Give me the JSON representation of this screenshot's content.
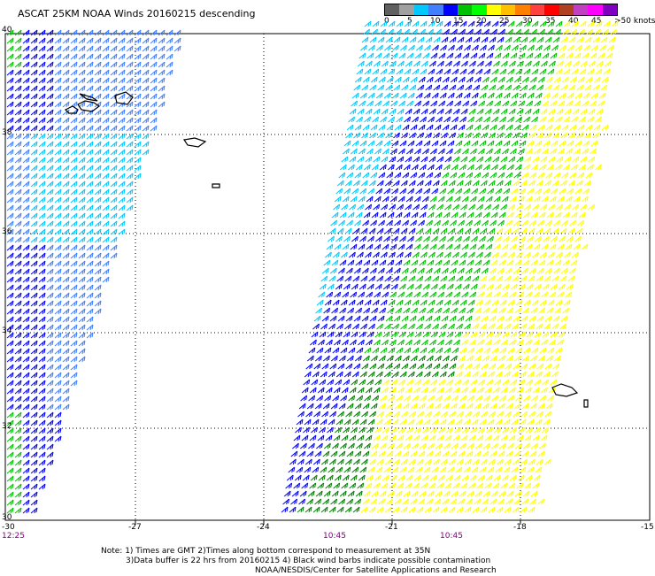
{
  "title": "ASCAT 25KM NOAA Winds 20160215 descending",
  "legend": {
    "colors": [
      "#606060",
      "#a0a0a0",
      "#00c8ff",
      "#4080ff",
      "#0000ff",
      "#00c000",
      "#00ff00",
      "#ffff00",
      "#ffc000",
      "#ff8000",
      "#ff4040",
      "#ff0000",
      "#b04020",
      "#c040c0",
      "#ff00ff",
      "#8000c0"
    ],
    "labels": [
      "0",
      "5",
      "10",
      "15",
      "20",
      "25",
      "30",
      "35",
      "40",
      "45",
      ">50 knots"
    ]
  },
  "map": {
    "lon_labels": [
      "-30",
      "-27",
      "-24",
      "-21",
      "-18",
      "-15"
    ],
    "lat_labels": [
      "40",
      "38",
      "36",
      "34",
      "32",
      "30"
    ],
    "times": [
      "12:25",
      "10:45",
      "10:45"
    ],
    "time_color": "#800080"
  },
  "notes": [
    "Note: 1) Times are GMT 2)Times along bottom correspond to measurement at 35N",
    "3)Data buffer is 22 hrs from 20160215 4) Black wind barbs indicate possible contamination",
    "NOAA/NESDIS/Center for Satellite Applications and Research"
  ]
}
